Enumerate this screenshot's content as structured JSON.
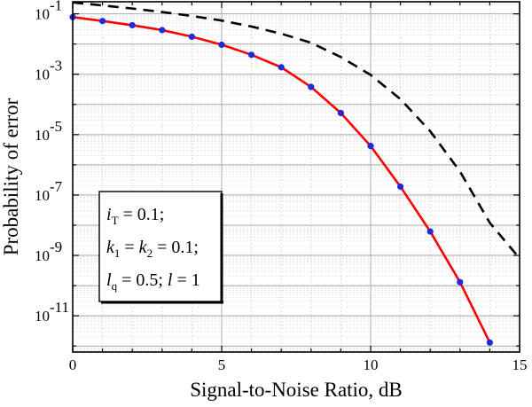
{
  "chart_data": {
    "type": "line",
    "title": "",
    "xlabel": "Signal-to-Noise Ratio, dB",
    "ylabel": "Probability of error",
    "xlim": [
      0,
      15
    ],
    "ylim_log10": [
      -12.2,
      -0.6
    ],
    "yscale": "log",
    "grid": true,
    "x_ticks": [
      "0",
      "5",
      "10",
      "15"
    ],
    "y_ticks": [
      {
        "base": "10",
        "exp": "-1",
        "log10": -1
      },
      {
        "base": "10",
        "exp": "-3",
        "log10": -3
      },
      {
        "base": "10",
        "exp": "-5",
        "log10": -5
      },
      {
        "base": "10",
        "exp": "-7",
        "log10": -7
      },
      {
        "base": "10",
        "exp": "-9",
        "log10": -9
      },
      {
        "base": "10",
        "exp": "-11",
        "log10": -11
      }
    ],
    "series": [
      {
        "style": "solid-red-with-blue-markers",
        "color": "#ff0000",
        "marker_color": "#1f2bd6",
        "x": [
          0,
          1,
          2,
          3,
          4,
          5,
          6,
          7,
          8,
          9,
          10,
          11,
          12,
          13,
          14
        ],
        "y": [
          0.078,
          0.058,
          0.042,
          0.029,
          0.0175,
          0.0095,
          0.0044,
          0.0017,
          0.00038,
          5.2e-05,
          4.2e-06,
          1.9e-07,
          6.2e-09,
          1.3e-10,
          1.3e-12
        ]
      },
      {
        "style": "dashed-black",
        "color": "#000000",
        "x": [
          0,
          1,
          2,
          3,
          4,
          5,
          6,
          7,
          8,
          9,
          10,
          11,
          12,
          13,
          14,
          15
        ],
        "y": [
          0.24,
          0.19,
          0.15,
          0.115,
          0.085,
          0.06,
          0.038,
          0.022,
          0.011,
          0.0037,
          0.00095,
          0.00015,
          1.3e-05,
          6e-07,
          1.2e-08,
          8e-10
        ]
      }
    ],
    "legend": {
      "placement": "bottom-left",
      "lines": [
        [
          {
            "t": "i",
            "style": "italic"
          },
          {
            "t": "T",
            "style": "sub"
          },
          {
            "t": " = 0.1;",
            "style": "normal"
          }
        ],
        [
          {
            "t": "k",
            "style": "italic"
          },
          {
            "t": "1",
            "style": "sub"
          },
          {
            "t": " = ",
            "style": "normal"
          },
          {
            "t": "k",
            "style": "italic"
          },
          {
            "t": "2",
            "style": "sub"
          },
          {
            "t": " = 0.1;",
            "style": "normal"
          }
        ],
        [
          {
            "t": "l",
            "style": "italic"
          },
          {
            "t": "q",
            "style": "sub"
          },
          {
            "t": " = 0.5; ",
            "style": "normal"
          },
          {
            "t": "l",
            "style": "italic"
          },
          {
            "t": " = 1",
            "style": "normal"
          }
        ]
      ]
    }
  }
}
